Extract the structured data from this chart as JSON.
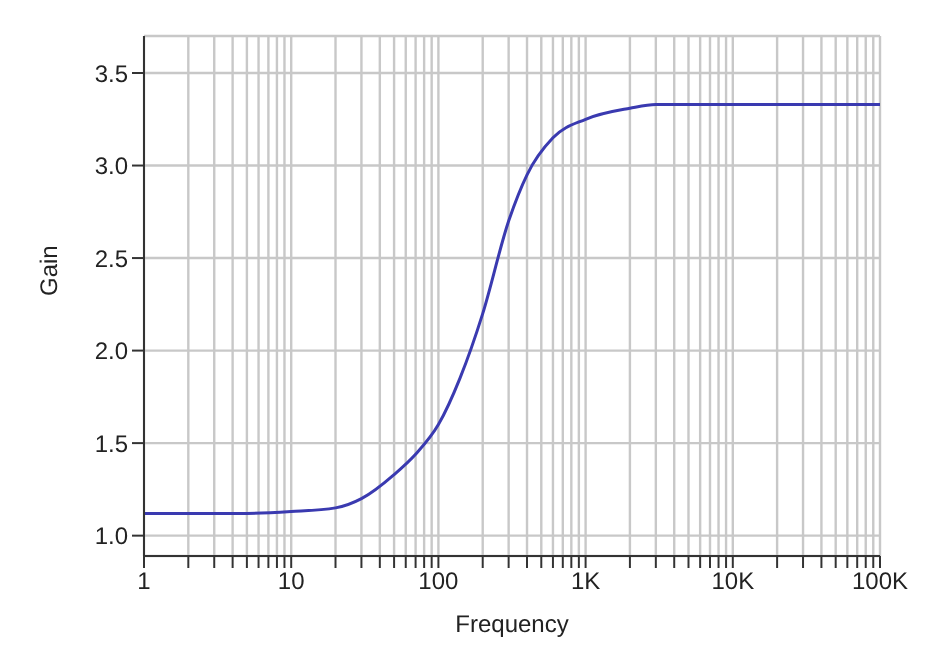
{
  "chart_data": {
    "type": "line",
    "xlabel": "Frequency",
    "ylabel": "Gain",
    "log": "x",
    "grid": true,
    "marker": "none",
    "line_style": "solid",
    "legend": false,
    "x": [
      1,
      3,
      5,
      10,
      20,
      30,
      50,
      70,
      100,
      140,
      200,
      300,
      400,
      600,
      1000,
      2000,
      3000,
      10000,
      100000
    ],
    "series": [
      {
        "color": "#3a3ab0",
        "values": [
          1.12,
          1.12,
          1.12,
          1.13,
          1.15,
          1.2,
          1.33,
          1.44,
          1.6,
          1.85,
          2.2,
          2.7,
          2.95,
          3.15,
          3.25,
          3.31,
          3.33,
          3.33,
          3.33
        ]
      }
    ],
    "xlim": [
      1,
      100000
    ],
    "xticks": [
      {
        "value": 1,
        "label": "1"
      },
      {
        "value": 2,
        "label": null
      },
      {
        "value": 3,
        "label": null
      },
      {
        "value": 4,
        "label": null
      },
      {
        "value": 5,
        "label": null
      },
      {
        "value": 6,
        "label": null
      },
      {
        "value": 7,
        "label": null
      },
      {
        "value": 8,
        "label": null
      },
      {
        "value": 9,
        "label": null
      },
      {
        "value": 10,
        "label": "10"
      },
      {
        "value": 20,
        "label": null
      },
      {
        "value": 30,
        "label": null
      },
      {
        "value": 40,
        "label": null
      },
      {
        "value": 50,
        "label": null
      },
      {
        "value": 60,
        "label": null
      },
      {
        "value": 70,
        "label": null
      },
      {
        "value": 80,
        "label": null
      },
      {
        "value": 90,
        "label": null
      },
      {
        "value": 100,
        "label": "100"
      },
      {
        "value": 200,
        "label": null
      },
      {
        "value": 300,
        "label": null
      },
      {
        "value": 400,
        "label": null
      },
      {
        "value": 500,
        "label": null
      },
      {
        "value": 600,
        "label": null
      },
      {
        "value": 700,
        "label": null
      },
      {
        "value": 800,
        "label": null
      },
      {
        "value": 900,
        "label": null
      },
      {
        "value": 1000,
        "label": "1K"
      },
      {
        "value": 2000,
        "label": null
      },
      {
        "value": 3000,
        "label": null
      },
      {
        "value": 4000,
        "label": null
      },
      {
        "value": 5000,
        "label": null
      },
      {
        "value": 6000,
        "label": null
      },
      {
        "value": 7000,
        "label": null
      },
      {
        "value": 8000,
        "label": null
      },
      {
        "value": 9000,
        "label": null
      },
      {
        "value": 10000,
        "label": "10K"
      },
      {
        "value": 20000,
        "label": null
      },
      {
        "value": 30000,
        "label": null
      },
      {
        "value": 40000,
        "label": null
      },
      {
        "value": 50000,
        "label": null
      },
      {
        "value": 60000,
        "label": null
      },
      {
        "value": 70000,
        "label": null
      },
      {
        "value": 80000,
        "label": null
      },
      {
        "value": 90000,
        "label": null
      },
      {
        "value": 100000,
        "label": "100K"
      }
    ],
    "ylim": [
      0.89,
      3.7
    ],
    "yticks": [
      {
        "value": 1.0,
        "label": "1.0"
      },
      {
        "value": 1.5,
        "label": "1.5"
      },
      {
        "value": 2.0,
        "label": "2.0"
      },
      {
        "value": 2.5,
        "label": "2.5"
      },
      {
        "value": 3.0,
        "label": "3.0"
      },
      {
        "value": 3.5,
        "label": "3.5"
      }
    ]
  }
}
